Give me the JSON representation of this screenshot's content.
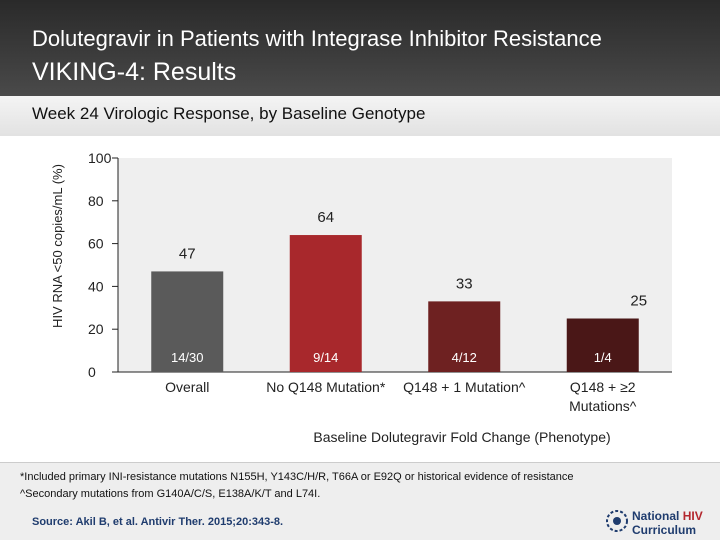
{
  "header": {
    "title_line1": "Dolutegravir in Patients with Integrase Inhibitor Resistance",
    "title_line2": "VIKING-4: Results"
  },
  "subtitle": "Week 24 Virologic Response, by Baseline Genotype",
  "chart_data": {
    "type": "bar",
    "ylabel": "HIV RNA <50 copies/mL (%)",
    "xlabel": "Baseline Dolutegravir Fold Change (Phenotype)",
    "ylim": [
      0,
      100
    ],
    "yticks": [
      0,
      20,
      40,
      60,
      80,
      100
    ],
    "grid": false,
    "categories": [
      "Overall",
      "No Q148 Mutation*",
      "Q148 + 1 Mutation^",
      "Q148 + ≥2 Mutations^"
    ],
    "category_lines": [
      [
        "Overall"
      ],
      [
        "No Q148 Mutation*"
      ],
      [
        "Q148 + 1 Mutation^"
      ],
      [
        "Q148 + ≥2",
        "Mutations^"
      ]
    ],
    "values": [
      47,
      64,
      33,
      25
    ],
    "value_labels": [
      "47",
      "64",
      "33",
      "25"
    ],
    "fractions": [
      "14/30",
      "9/14",
      "4/12",
      "1/4"
    ],
    "colors": [
      "#5a5a5a",
      "#a8282c",
      "#6e2121",
      "#4a1717"
    ],
    "plot_background": "#efefef"
  },
  "footnotes": [
    "*Included primary INI-resistance mutations N155H, Y143C/H/R, T66A or E92Q or historical evidence of resistance",
    "^Secondary mutations from G140A/C/S, E138A/K/T and L74I."
  ],
  "source": "Source: Akil B, et al. Antivir Ther. 2015;20:343-8.",
  "logo": {
    "line1_a": "National",
    "line1_b": "HIV",
    "line2": "Curriculum"
  }
}
